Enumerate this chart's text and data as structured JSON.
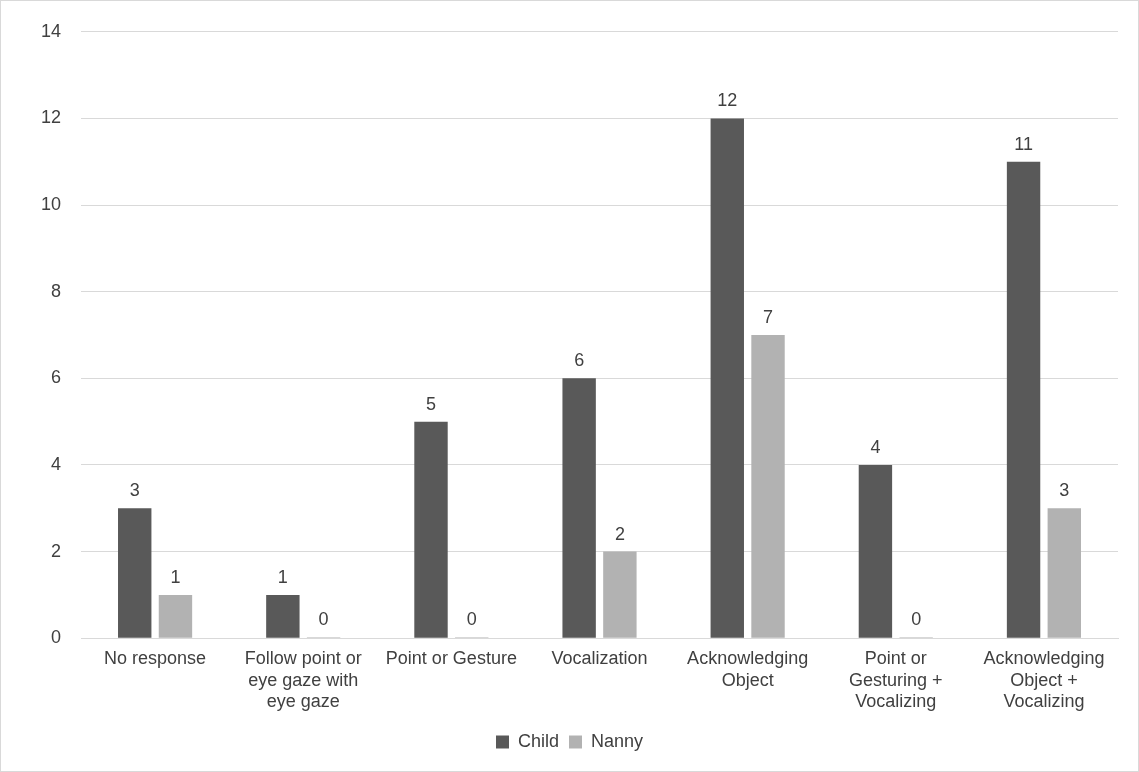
{
  "chart_data": {
    "type": "bar",
    "categories": [
      "No response",
      "Follow point or eye gaze with eye gaze",
      "Point or Gesture",
      "Vocalization",
      "Acknowledging Object",
      "Point or Gesturing + Vocalizing",
      "Acknowledging Object + Vocalizing"
    ],
    "series": [
      {
        "name": "Child",
        "color": "#595959",
        "values": [
          3,
          1,
          5,
          6,
          12,
          4,
          11
        ]
      },
      {
        "name": "Nanny",
        "color": "#b2b2b2",
        "values": [
          1,
          0,
          0,
          2,
          7,
          0,
          3
        ]
      }
    ],
    "ylim": [
      0,
      14
    ],
    "yticks": [
      0,
      2,
      4,
      6,
      8,
      10,
      12,
      14
    ],
    "grid": "y",
    "legend": "bottom",
    "data_labels": true
  }
}
